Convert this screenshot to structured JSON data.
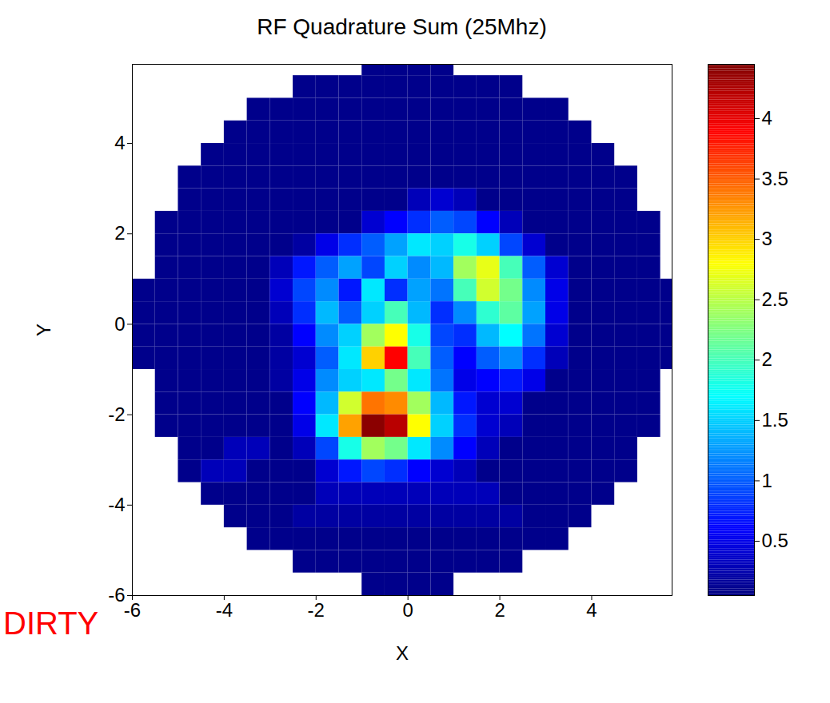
{
  "chart_data": {
    "type": "heatmap",
    "title": "RF Quadrature Sum (25Mhz)",
    "xlabel": "X",
    "ylabel": "Y",
    "annotation": "DIRTY",
    "xlim": [
      -6,
      5.75
    ],
    "ylim": [
      -6,
      5.75
    ],
    "xticks": [
      -6,
      -4,
      -2,
      0,
      2,
      4
    ],
    "yticks": [
      -6,
      -4,
      -2,
      0,
      2,
      4
    ],
    "colorbar": {
      "range": [
        0.05,
        4.45
      ],
      "ticks": [
        0.5,
        1,
        1.5,
        2,
        2.5,
        3,
        3.5,
        4
      ]
    },
    "x": [
      -5.75,
      -5.25,
      -4.75,
      -4.25,
      -3.75,
      -3.25,
      -2.75,
      -2.25,
      -1.75,
      -1.25,
      -0.75,
      -0.25,
      0.25,
      0.75,
      1.25,
      1.75,
      2.25,
      2.75,
      3.25,
      3.75,
      4.25,
      4.75,
      5.25,
      5.75
    ],
    "y": [
      5.75,
      5.25,
      4.75,
      4.25,
      3.75,
      3.25,
      2.75,
      2.25,
      1.75,
      1.25,
      0.75,
      0.25,
      -0.25,
      -0.75,
      -1.25,
      -1.75,
      -2.25,
      -2.75,
      -3.25,
      -3.75,
      -4.25,
      -4.75,
      -5.25,
      -5.75
    ],
    "z": [
      [
        null,
        null,
        null,
        null,
        null,
        null,
        null,
        null,
        null,
        null,
        0.1,
        0.1,
        0.1,
        0.1,
        null,
        null,
        null,
        null,
        null,
        null,
        null,
        null,
        null,
        null
      ],
      [
        null,
        null,
        null,
        null,
        null,
        null,
        null,
        0.1,
        0.1,
        0.1,
        0.1,
        0.1,
        0.1,
        0.1,
        0.1,
        0.1,
        0.1,
        null,
        null,
        null,
        null,
        null,
        null,
        null
      ],
      [
        null,
        null,
        null,
        null,
        null,
        0.1,
        0.1,
        0.1,
        0.1,
        0.1,
        0.1,
        0.1,
        0.1,
        0.1,
        0.1,
        0.1,
        0.1,
        0.1,
        0.1,
        null,
        null,
        null,
        null,
        null
      ],
      [
        null,
        null,
        null,
        null,
        0.1,
        0.1,
        0.1,
        0.1,
        0.1,
        0.1,
        0.1,
        0.1,
        0.1,
        0.1,
        0.1,
        0.1,
        0.1,
        0.1,
        0.1,
        0.1,
        null,
        null,
        null,
        null
      ],
      [
        null,
        null,
        null,
        0.1,
        0.1,
        0.1,
        0.1,
        0.1,
        0.1,
        0.1,
        0.1,
        0.1,
        0.1,
        0.1,
        0.1,
        0.1,
        0.1,
        0.1,
        0.1,
        0.1,
        0.1,
        null,
        null,
        null
      ],
      [
        null,
        null,
        0.1,
        0.1,
        0.1,
        0.1,
        0.1,
        0.1,
        0.1,
        0.1,
        0.1,
        0.1,
        0.1,
        0.1,
        0.1,
        0.1,
        0.1,
        0.1,
        0.1,
        0.1,
        0.1,
        0.1,
        null,
        null
      ],
      [
        null,
        null,
        0.1,
        0.1,
        0.1,
        0.1,
        0.1,
        0.1,
        0.1,
        0.1,
        0.1,
        0.1,
        0.3,
        0.4,
        0.3,
        0.1,
        0.1,
        0.1,
        0.1,
        0.1,
        0.1,
        0.1,
        null,
        null
      ],
      [
        null,
        0.1,
        0.1,
        0.1,
        0.1,
        0.1,
        0.1,
        0.1,
        0.1,
        0.1,
        0.4,
        0.6,
        0.8,
        1.0,
        0.9,
        0.6,
        0.3,
        0.1,
        0.1,
        0.1,
        0.1,
        0.1,
        0.1,
        null
      ],
      [
        null,
        0.1,
        0.1,
        0.1,
        0.1,
        0.1,
        0.1,
        0.2,
        0.5,
        0.8,
        1.0,
        1.3,
        1.6,
        1.5,
        1.8,
        1.5,
        0.9,
        0.4,
        0.1,
        0.1,
        0.1,
        0.1,
        0.1,
        null
      ],
      [
        null,
        0.1,
        0.1,
        0.1,
        0.1,
        0.1,
        0.3,
        0.7,
        1.0,
        1.3,
        0.9,
        1.5,
        1.2,
        1.4,
        2.4,
        2.7,
        2.0,
        1.0,
        0.4,
        0.1,
        0.1,
        0.1,
        0.1,
        null
      ],
      [
        0.1,
        0.1,
        0.1,
        0.1,
        0.1,
        0.1,
        0.4,
        0.9,
        1.2,
        0.7,
        1.6,
        0.8,
        1.3,
        1.1,
        2.0,
        2.6,
        2.2,
        1.2,
        0.5,
        0.1,
        0.1,
        0.1,
        0.1,
        0.1
      ],
      [
        0.1,
        0.1,
        0.1,
        0.1,
        0.1,
        0.1,
        0.3,
        0.8,
        1.4,
        1.0,
        1.5,
        2.0,
        1.4,
        0.8,
        1.2,
        1.9,
        2.1,
        1.3,
        0.5,
        0.1,
        0.1,
        0.1,
        0.1,
        0.1
      ],
      [
        0.1,
        0.1,
        0.1,
        0.1,
        0.1,
        0.1,
        0.2,
        0.6,
        1.2,
        1.5,
        2.4,
        2.8,
        1.8,
        0.9,
        0.8,
        1.4,
        1.7,
        1.1,
        0.4,
        0.1,
        0.1,
        0.1,
        0.1,
        0.1
      ],
      [
        0.1,
        0.1,
        0.1,
        0.1,
        0.1,
        0.1,
        0.2,
        0.4,
        1.0,
        1.6,
        3.0,
        3.9,
        2.0,
        1.0,
        0.6,
        1.0,
        1.2,
        0.8,
        0.3,
        0.1,
        0.1,
        0.1,
        0.1,
        0.1
      ],
      [
        null,
        0.1,
        0.1,
        0.1,
        0.1,
        0.1,
        0.2,
        0.5,
        1.2,
        1.5,
        1.6,
        2.2,
        1.6,
        1.1,
        0.5,
        0.6,
        0.7,
        0.5,
        0.1,
        0.1,
        0.1,
        0.1,
        0.1,
        null
      ],
      [
        null,
        0.1,
        0.1,
        0.1,
        0.1,
        0.1,
        0.1,
        0.6,
        1.4,
        2.6,
        3.4,
        3.3,
        2.4,
        1.4,
        0.7,
        0.4,
        0.4,
        0.1,
        0.1,
        0.1,
        0.1,
        0.1,
        0.1,
        null
      ],
      [
        null,
        0.1,
        0.1,
        0.1,
        0.1,
        0.1,
        0.1,
        0.5,
        1.6,
        3.2,
        4.4,
        4.2,
        2.8,
        1.5,
        0.8,
        0.4,
        0.3,
        0.1,
        0.1,
        0.1,
        0.1,
        0.1,
        0.1,
        null
      ],
      [
        null,
        null,
        0.1,
        0.1,
        0.3,
        0.3,
        0.1,
        0.3,
        0.9,
        1.8,
        2.4,
        2.2,
        1.6,
        1.2,
        0.6,
        0.3,
        0.1,
        0.1,
        0.1,
        0.1,
        0.1,
        0.1,
        null,
        null
      ],
      [
        null,
        null,
        0.1,
        0.3,
        0.3,
        0.1,
        0.1,
        0.1,
        0.4,
        0.7,
        0.9,
        0.8,
        0.6,
        0.4,
        0.3,
        0.1,
        0.1,
        0.1,
        0.1,
        0.1,
        0.1,
        0.1,
        null,
        null
      ],
      [
        null,
        null,
        null,
        0.1,
        0.1,
        0.1,
        0.1,
        0.1,
        0.3,
        0.3,
        0.3,
        0.3,
        0.3,
        0.3,
        0.3,
        0.3,
        0.1,
        0.1,
        0.1,
        0.1,
        0.1,
        null,
        null,
        null
      ],
      [
        null,
        null,
        null,
        null,
        0.1,
        0.1,
        0.1,
        0.2,
        0.2,
        0.2,
        0.2,
        0.2,
        0.2,
        0.2,
        0.2,
        0.2,
        0.2,
        0.1,
        0.1,
        0.1,
        null,
        null,
        null,
        null
      ],
      [
        null,
        null,
        null,
        null,
        null,
        0.1,
        0.1,
        0.1,
        0.1,
        0.1,
        0.1,
        0.1,
        0.1,
        0.1,
        0.1,
        0.1,
        0.1,
        0.1,
        0.1,
        null,
        null,
        null,
        null,
        null
      ],
      [
        null,
        null,
        null,
        null,
        null,
        null,
        null,
        0.1,
        0.1,
        0.1,
        0.1,
        0.1,
        0.1,
        0.1,
        0.1,
        0.1,
        0.1,
        null,
        null,
        null,
        null,
        null,
        null,
        null
      ],
      [
        null,
        null,
        null,
        null,
        null,
        null,
        null,
        null,
        null,
        null,
        0.1,
        0.1,
        0.1,
        0.1,
        null,
        null,
        null,
        null,
        null,
        null,
        null,
        null,
        null,
        null
      ]
    ]
  }
}
